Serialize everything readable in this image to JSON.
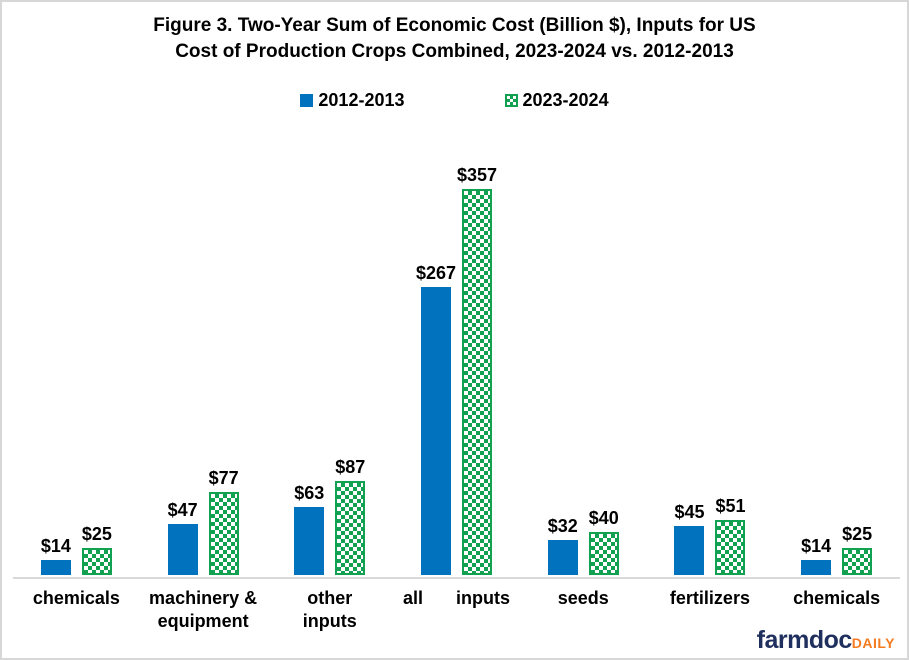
{
  "title": {
    "lines": [
      "Figure  3. Two-Year Sum of Economic  Cost (Billion  $), Inputs  for US",
      "Cost of Production  Crops  Combined,  2023-2024  vs. 2012-2013"
    ]
  },
  "legend": [
    {
      "label": "2012-2013",
      "pattern": "solid"
    },
    {
      "label": "2023-2024",
      "pattern": "checker"
    }
  ],
  "colors": {
    "blue": "#0072BE",
    "green": "#12A150",
    "axis": "#d9d9d9",
    "navy": "#1F2F5E",
    "orange": "#F47B20"
  },
  "chart_data": {
    "type": "bar",
    "categories": [
      "chemicals",
      "machinery & equipment",
      "other inputs",
      "all inputs",
      "seeds",
      "fertilizers",
      "chemicals"
    ],
    "categories_display": [
      {
        "lines": [
          "chemicals"
        ],
        "wide": false
      },
      {
        "lines": [
          "machinery &",
          "equipment"
        ],
        "wide": false
      },
      {
        "lines": [
          "other",
          "inputs"
        ],
        "wide": false
      },
      {
        "lines": [
          "all inputs"
        ],
        "wide": true
      },
      {
        "lines": [
          "seeds"
        ],
        "wide": false
      },
      {
        "lines": [
          "fertilizers"
        ],
        "wide": false
      },
      {
        "lines": [
          "chemicals"
        ],
        "wide": false
      }
    ],
    "series": [
      {
        "name": "2012-2013",
        "style": "solid",
        "values": [
          14,
          47,
          63,
          267,
          32,
          45,
          14
        ]
      },
      {
        "name": "2023-2024",
        "style": "checker",
        "values": [
          25,
          77,
          87,
          357,
          40,
          51,
          25
        ]
      }
    ],
    "value_prefix": "$",
    "title": "Figure 3. Two-Year Sum of Economic Cost (Billion $), Inputs for US Cost of Production Crops Combined, 2023-2024 vs. 2012-2013",
    "xlabel": "",
    "ylabel": "",
    "ylim": [
      0,
      357
    ],
    "grid": false,
    "legend_position": "top",
    "data_labels": true
  },
  "branding": {
    "farmdoc": "farmdoc",
    "daily": "DAILY"
  }
}
